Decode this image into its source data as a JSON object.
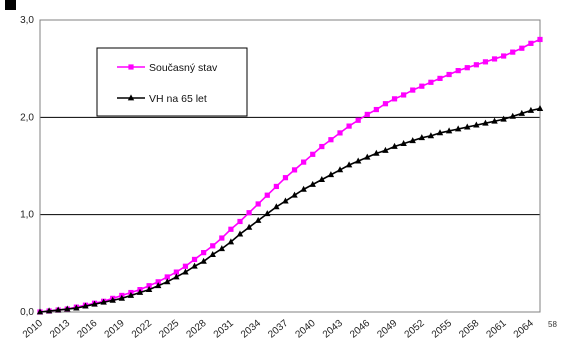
{
  "page_number": "58",
  "colors": {
    "series_1": "#ff00ff",
    "series_2": "#000000",
    "grid": "#000000",
    "plot_border": "#808080"
  },
  "chart_data": {
    "type": "line",
    "title": "",
    "xlabel": "",
    "ylabel": "",
    "ylim": [
      0,
      3
    ],
    "yticks": [
      "0,0",
      "1,0",
      "2,0",
      "3,0"
    ],
    "xticks": [
      "2010",
      "2013",
      "2016",
      "2019",
      "2022",
      "2025",
      "2028",
      "2031",
      "2034",
      "2037",
      "2040",
      "2043",
      "2046",
      "2049",
      "2052",
      "2055",
      "2058",
      "2061",
      "2064"
    ],
    "grid": "horizontal",
    "legend_placement": "top-left",
    "x": [
      2010,
      2011,
      2012,
      2013,
      2014,
      2015,
      2016,
      2017,
      2018,
      2019,
      2020,
      2021,
      2022,
      2023,
      2024,
      2025,
      2026,
      2027,
      2028,
      2029,
      2030,
      2031,
      2032,
      2033,
      2034,
      2035,
      2036,
      2037,
      2038,
      2039,
      2040,
      2041,
      2042,
      2043,
      2044,
      2045,
      2046,
      2047,
      2048,
      2049,
      2050,
      2051,
      2052,
      2053,
      2054,
      2055,
      2056,
      2057,
      2058,
      2059,
      2060,
      2061,
      2062,
      2063,
      2064,
      2065
    ],
    "series": [
      {
        "name": "Současný stav",
        "marker": "square",
        "values": [
          0.0,
          0.01,
          0.02,
          0.03,
          0.05,
          0.07,
          0.09,
          0.11,
          0.14,
          0.17,
          0.2,
          0.23,
          0.27,
          0.31,
          0.36,
          0.41,
          0.47,
          0.54,
          0.61,
          0.68,
          0.76,
          0.85,
          0.93,
          1.02,
          1.11,
          1.2,
          1.29,
          1.38,
          1.46,
          1.54,
          1.62,
          1.7,
          1.77,
          1.84,
          1.91,
          1.97,
          2.03,
          2.08,
          2.14,
          2.19,
          2.23,
          2.28,
          2.32,
          2.36,
          2.4,
          2.44,
          2.48,
          2.51,
          2.54,
          2.57,
          2.6,
          2.63,
          2.67,
          2.71,
          2.76,
          2.8
        ]
      },
      {
        "name": "VH na 65 let",
        "marker": "triangle",
        "values": [
          0.0,
          0.01,
          0.02,
          0.03,
          0.04,
          0.06,
          0.08,
          0.1,
          0.12,
          0.14,
          0.17,
          0.2,
          0.23,
          0.27,
          0.31,
          0.36,
          0.41,
          0.47,
          0.52,
          0.59,
          0.65,
          0.72,
          0.8,
          0.87,
          0.94,
          1.01,
          1.08,
          1.14,
          1.2,
          1.26,
          1.31,
          1.36,
          1.41,
          1.46,
          1.51,
          1.55,
          1.59,
          1.63,
          1.66,
          1.7,
          1.73,
          1.76,
          1.79,
          1.81,
          1.84,
          1.86,
          1.88,
          1.9,
          1.92,
          1.94,
          1.96,
          1.98,
          2.01,
          2.04,
          2.07,
          2.09
        ]
      }
    ]
  }
}
